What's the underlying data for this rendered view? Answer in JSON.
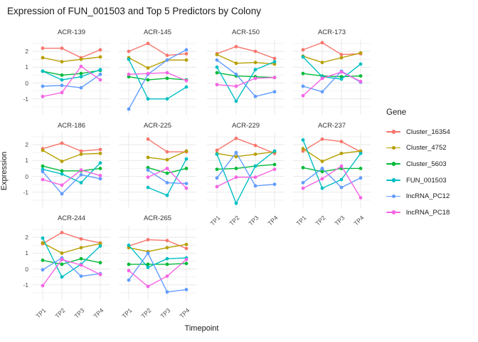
{
  "title": "Expression of FUN_001503 and Top 5 Predictors by Colony",
  "axes": {
    "x_title": "Timepoint",
    "y_title": "Expression",
    "x_ticks": [
      "TP1",
      "TP2",
      "TP3",
      "TP4"
    ],
    "y_ticks": [
      "2",
      "1",
      "0",
      "-1"
    ],
    "y_tick_values": [
      2,
      1,
      0,
      -1
    ]
  },
  "legend": {
    "title": "Gene",
    "position": "right",
    "entries": [
      {
        "label": "Cluster_16354",
        "color": "#F8766D"
      },
      {
        "label": "Cluster_4752",
        "color": "#B79F00"
      },
      {
        "label": "Cluster_5603",
        "color": "#00BA38"
      },
      {
        "label": "FUN_001503",
        "color": "#00BFC4"
      },
      {
        "label": "lncRNA_PC12",
        "color": "#619CFF"
      },
      {
        "label": "lncRNA_PC18",
        "color": "#F564E3"
      }
    ]
  },
  "colors": {
    "grid_major": "#E8E8E8",
    "grid_minor": "#F2F2F2",
    "tick_text": "#4D4D4D"
  },
  "chart_data": {
    "type": "line",
    "title": "Expression of FUN_001503 and Top 5 Predictors by Colony",
    "xlabel": "Timepoint",
    "ylabel": "Expression",
    "x": [
      "TP1",
      "TP2",
      "TP3",
      "TP4"
    ],
    "ylim": [
      -2.0,
      2.77
    ],
    "grid": true,
    "legend_position": "right",
    "series_order": [
      "Cluster_16354",
      "Cluster_4752",
      "Cluster_5603",
      "FUN_001503",
      "lncRNA_PC12",
      "lncRNA_PC18"
    ],
    "facets": [
      {
        "name": "ACR-139",
        "values": [
          [
            2.2,
            2.2,
            1.6,
            2.1
          ],
          [
            1.6,
            1.35,
            1.5,
            1.65
          ],
          [
            0.75,
            0.5,
            0.6,
            0.8
          ],
          [
            0.75,
            0.2,
            0.4,
            0.85
          ],
          [
            -0.2,
            -0.15,
            -0.3,
            0.55
          ],
          [
            -0.85,
            -0.6,
            1.05,
            0.2
          ]
        ]
      },
      {
        "name": "ACR-145",
        "values": [
          [
            2.0,
            2.5,
            1.75,
            1.85
          ],
          [
            1.6,
            0.95,
            1.45,
            1.45
          ],
          [
            0.4,
            0.2,
            0.3,
            0.2
          ],
          [
            1.5,
            -1.0,
            -1.0,
            -0.25
          ],
          [
            -1.65,
            0.55,
            1.45,
            2.1
          ],
          [
            0.55,
            0.6,
            0.65,
            0.15
          ]
        ]
      },
      {
        "name": "ACR-150",
        "values": [
          [
            1.85,
            2.3,
            2.0,
            1.55
          ],
          [
            1.8,
            1.25,
            1.3,
            1.2
          ],
          [
            0.65,
            0.45,
            0.4,
            0.35
          ],
          [
            1.0,
            -1.15,
            0.85,
            1.35
          ],
          [
            1.45,
            0.55,
            -0.85,
            -0.55
          ],
          [
            -0.1,
            -0.2,
            0.3,
            0.35
          ]
        ]
      },
      {
        "name": "ACR-173",
        "values": [
          [
            2.1,
            2.55,
            1.8,
            1.85
          ],
          [
            1.7,
            1.3,
            1.6,
            1.9
          ],
          [
            0.6,
            0.45,
            0.4,
            0.45
          ],
          [
            1.65,
            0.4,
            0.25,
            1.2
          ],
          [
            -0.2,
            -0.55,
            0.75,
            0.05
          ],
          [
            -0.8,
            0.3,
            0.7,
            0.1
          ]
        ]
      },
      {
        "name": "ACR-186",
        "values": [
          [
            1.75,
            2.1,
            1.6,
            1.7
          ],
          [
            1.65,
            0.95,
            1.4,
            1.45
          ],
          [
            0.65,
            0.35,
            0.35,
            0.5
          ],
          [
            0.45,
            0.15,
            -0.4,
            0.85
          ],
          [
            0.3,
            -1.1,
            0.1,
            -0.15
          ],
          [
            -0.2,
            -0.55,
            0.4,
            0.05
          ]
        ]
      },
      {
        "name": "ACR-225",
        "values": [
          [
            null,
            2.35,
            1.55,
            1.55
          ],
          [
            null,
            1.2,
            1.05,
            1.6
          ],
          [
            null,
            0.55,
            0.2,
            0.5
          ],
          [
            null,
            -0.7,
            -1.2,
            1.1
          ],
          [
            null,
            0.4,
            -0.4,
            -0.45
          ],
          [
            null,
            -0.05,
            0.5,
            -0.75
          ]
        ]
      },
      {
        "name": "ACR-229",
        "values": [
          [
            1.65,
            2.4,
            1.95,
            1.45
          ],
          [
            1.45,
            1.25,
            1.4,
            1.55
          ],
          [
            0.45,
            0.5,
            0.65,
            0.75
          ],
          [
            1.4,
            -1.7,
            0.65,
            1.6
          ],
          [
            -0.1,
            1.5,
            -0.6,
            -0.5
          ],
          [
            -0.65,
            -0.05,
            -0.05,
            0.45
          ]
        ]
      },
      {
        "name": "ACR-237",
        "values": [
          [
            1.6,
            2.35,
            2.2,
            1.55
          ],
          [
            1.75,
            0.95,
            1.45,
            1.6
          ],
          [
            0.55,
            0.3,
            0.5,
            0.5
          ],
          [
            2.3,
            -0.75,
            -0.2,
            1.45
          ],
          [
            -0.4,
            0.5,
            -0.7,
            -0.1
          ],
          [
            -0.75,
            -0.15,
            0.65,
            -1.35
          ]
        ]
      },
      {
        "name": "ACR-244",
        "values": [
          [
            1.6,
            2.3,
            1.9,
            1.65
          ],
          [
            1.65,
            1.0,
            1.35,
            1.6
          ],
          [
            0.55,
            0.3,
            0.65,
            0.4
          ],
          [
            1.95,
            -0.5,
            0.3,
            1.45
          ],
          [
            -0.05,
            0.7,
            -0.45,
            -0.3
          ],
          [
            -1.05,
            0.6,
            0.25,
            -0.35
          ]
        ]
      },
      {
        "name": "ACR-265",
        "values": [
          [
            1.45,
            1.85,
            1.8,
            1.3
          ],
          [
            1.35,
            1.1,
            1.35,
            1.55
          ],
          [
            0.3,
            0.3,
            0.3,
            0.35
          ],
          [
            1.5,
            0.1,
            0.65,
            0.7
          ],
          [
            -0.7,
            1.0,
            -1.45,
            -1.3
          ],
          [
            -0.1,
            -1.1,
            -0.45,
            0.6
          ]
        ]
      }
    ]
  }
}
